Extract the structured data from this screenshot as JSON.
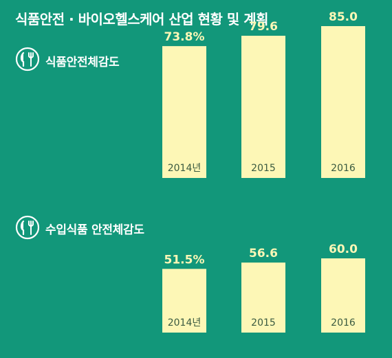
{
  "title": "식품안전 · 바이오헬스케어 산업 현황 및 계획",
  "colors": {
    "background": "#12977a",
    "bar_fill": "#fdf7b6",
    "value_label": "#fdf7b6",
    "bar_label": "#3a5a40",
    "text": "#ffffff"
  },
  "icons": [
    "fork-knife-icon",
    "fork-knife-icon"
  ],
  "chart_data": [
    {
      "type": "bar",
      "title": "식품안전체감도",
      "categories": [
        "2014년",
        "2015",
        "2016"
      ],
      "values": [
        73.8,
        79.6,
        85.0
      ],
      "value_labels": [
        "73.8%",
        "79.6",
        "85.0"
      ],
      "ylim": [
        0,
        100
      ],
      "grid": false
    },
    {
      "type": "bar",
      "title": "수입식품 안전체감도",
      "categories": [
        "2014년",
        "2015",
        "2016"
      ],
      "values": [
        51.5,
        56.6,
        60.0
      ],
      "value_labels": [
        "51.5%",
        "56.6",
        "60.0"
      ],
      "ylim": [
        0,
        100
      ],
      "grid": false
    }
  ]
}
